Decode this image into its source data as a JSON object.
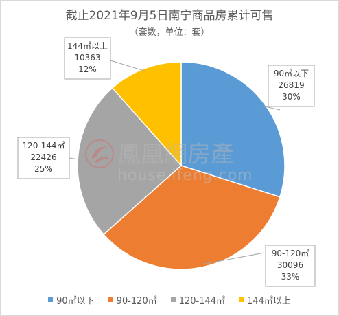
{
  "chart_data": {
    "type": "pie",
    "title": "截止2021年9月5日南宁商品房累计可售",
    "subtitle": "（套数，单位：套）",
    "categories": [
      "90㎡以下",
      "90-120㎡",
      "120-144㎡",
      "144㎡以上"
    ],
    "values": [
      26819,
      30096,
      22426,
      10363
    ],
    "percents": [
      "30%",
      "33%",
      "25%",
      "12%"
    ],
    "colors": [
      "#5B9BD5",
      "#ED7D31",
      "#A5A5A5",
      "#FFC000"
    ],
    "legend_position": "bottom",
    "start_angle": "12 o'clock, clockwise"
  },
  "watermark": {
    "text_cn": "鳳凰網房產",
    "text_en": "house.ifeng.com"
  }
}
